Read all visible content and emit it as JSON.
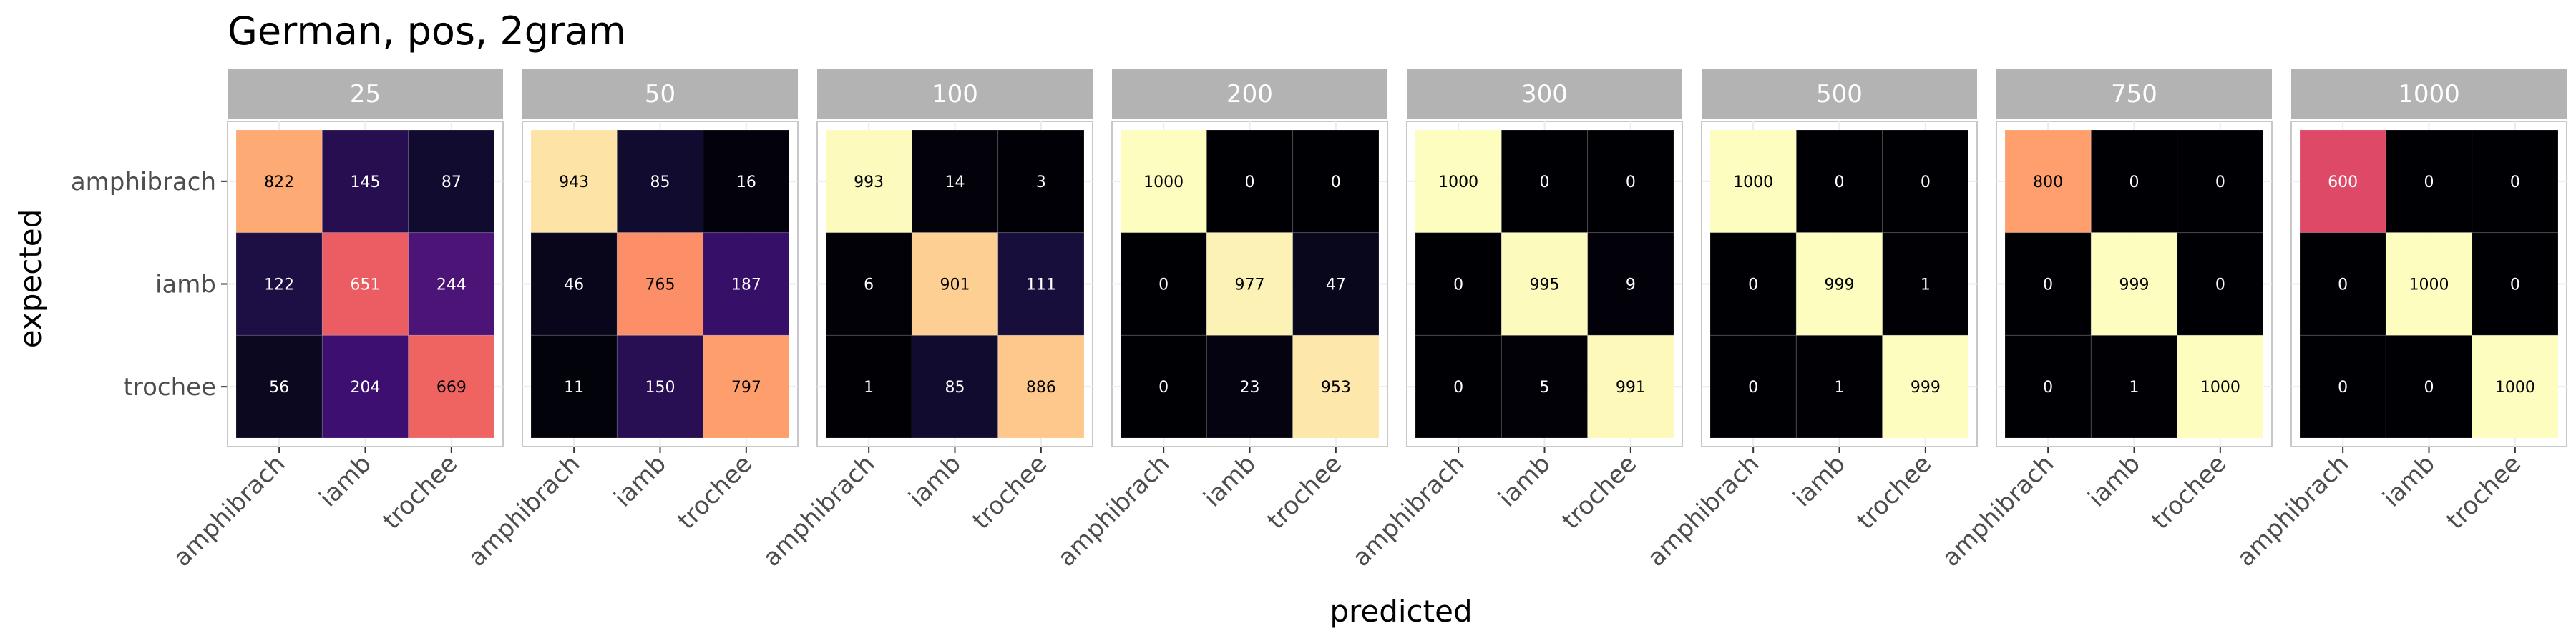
{
  "chart_data": {
    "type": "heatmap",
    "title": "German, pos, 2gram",
    "xlabel": "predicted",
    "ylabel": "expected",
    "x_categories": [
      "amphibrach",
      "iamb",
      "trochee"
    ],
    "y_categories": [
      "amphibrach",
      "iamb",
      "trochee"
    ],
    "color_scale": "magma",
    "value_range": [
      0,
      1000
    ],
    "facets": [
      {
        "label": "25",
        "matrix": [
          [
            822,
            145,
            87
          ],
          [
            122,
            651,
            244
          ],
          [
            56,
            204,
            669
          ]
        ]
      },
      {
        "label": "50",
        "matrix": [
          [
            943,
            85,
            16
          ],
          [
            46,
            765,
            187
          ],
          [
            11,
            150,
            797
          ]
        ]
      },
      {
        "label": "100",
        "matrix": [
          [
            993,
            14,
            3
          ],
          [
            6,
            901,
            111
          ],
          [
            1,
            85,
            886
          ]
        ]
      },
      {
        "label": "200",
        "matrix": [
          [
            1000,
            0,
            0
          ],
          [
            0,
            977,
            47
          ],
          [
            0,
            23,
            953
          ]
        ]
      },
      {
        "label": "300",
        "matrix": [
          [
            1000,
            0,
            0
          ],
          [
            0,
            995,
            9
          ],
          [
            0,
            5,
            991
          ]
        ]
      },
      {
        "label": "500",
        "matrix": [
          [
            1000,
            0,
            0
          ],
          [
            0,
            999,
            1
          ],
          [
            0,
            1,
            999
          ]
        ]
      },
      {
        "label": "750",
        "matrix": [
          [
            800,
            0,
            0
          ],
          [
            0,
            999,
            0
          ],
          [
            0,
            1,
            1000
          ]
        ]
      },
      {
        "label": "1000",
        "matrix": [
          [
            600,
            0,
            0
          ],
          [
            0,
            1000,
            0
          ],
          [
            0,
            0,
            1000
          ]
        ]
      }
    ]
  }
}
